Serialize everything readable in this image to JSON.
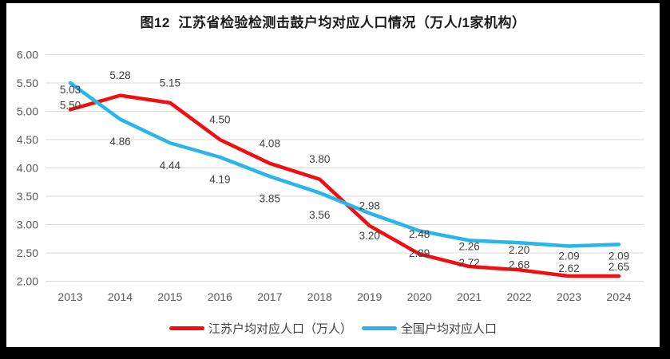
{
  "title": "图12  江苏省检验检测击鼓户均对应人口情况（万人/1家机构）",
  "chart_data": {
    "type": "line",
    "x": [
      2013,
      2014,
      2015,
      2016,
      2017,
      2018,
      2019,
      2020,
      2021,
      2022,
      2023,
      2024
    ],
    "series": [
      {
        "name": "江苏户均对应人口（万人）",
        "color": "#f30d12",
        "values": [
          5.03,
          5.28,
          5.15,
          4.5,
          4.08,
          3.8,
          2.98,
          2.48,
          2.26,
          2.2,
          2.09,
          2.09
        ]
      },
      {
        "name": "全国户均对应人口",
        "color": "#29b5e8",
        "values": [
          5.5,
          4.86,
          4.44,
          4.19,
          3.85,
          3.56,
          3.2,
          2.89,
          2.72,
          2.68,
          2.62,
          2.65
        ]
      }
    ],
    "title": "图12  江苏省检验检测击鼓户均对应人口情况（万人/1家机构）",
    "xlabel": "",
    "ylabel": "",
    "ylim": [
      2.0,
      6.0
    ],
    "ytick_step": 0.5,
    "ytick_labels": [
      "6.00",
      "5.50",
      "5.00",
      "4.50",
      "4.00",
      "3.50",
      "3.00",
      "2.50",
      "2.00"
    ],
    "data_labels_shown": true,
    "data_label_format": "0.00",
    "grid": "horizontal",
    "gridline_color": "#d9d9d9",
    "axis_label_color": "#595959",
    "data_label_color": "#404040",
    "legend_position": "bottom"
  },
  "legend": {
    "items": [
      {
        "label": "江苏户均对应人口（万人）",
        "color": "#f30d12"
      },
      {
        "label": "全国户均对应人口",
        "color": "#29b5e8"
      }
    ]
  }
}
